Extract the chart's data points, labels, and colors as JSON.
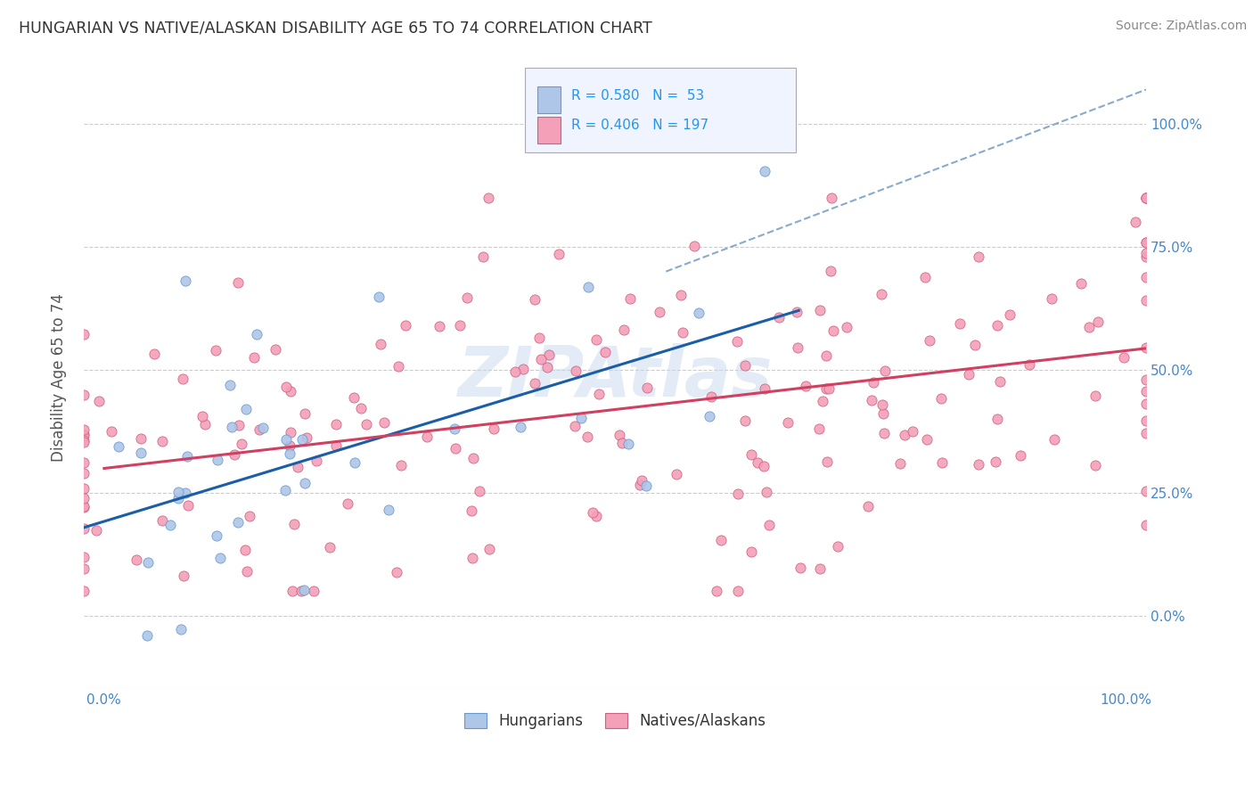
{
  "title": "HUNGARIAN VS NATIVE/ALASKAN DISABILITY AGE 65 TO 74 CORRELATION CHART",
  "source": "Source: ZipAtlas.com",
  "ylabel": "Disability Age 65 to 74",
  "watermark": "ZIPAtlas",
  "legend_labels_bottom": [
    "Hungarians",
    "Natives/Alaskans"
  ],
  "blue_R": 0.58,
  "blue_N": 53,
  "pink_R": 0.406,
  "pink_N": 197,
  "blue_scatter_color": "#aec6e8",
  "blue_scatter_edge": "#6699cc",
  "blue_line_color": "#1a5ea8",
  "pink_scatter_color": "#f4a0b8",
  "pink_scatter_edge": "#d06080",
  "pink_line_color": "#d04060",
  "dashed_line_color": "#88aacc",
  "background_color": "#ffffff",
  "grid_color": "#cccccc",
  "title_color": "#333333",
  "source_color": "#888888",
  "axis_label_color": "#555555",
  "tick_label_color": "#4488cc",
  "legend_text_color": "#2196f3",
  "blue_seed": 12,
  "pink_seed": 99,
  "legend_box_color": "#f0f4ff",
  "legend_border_color": "#aaaaaa"
}
